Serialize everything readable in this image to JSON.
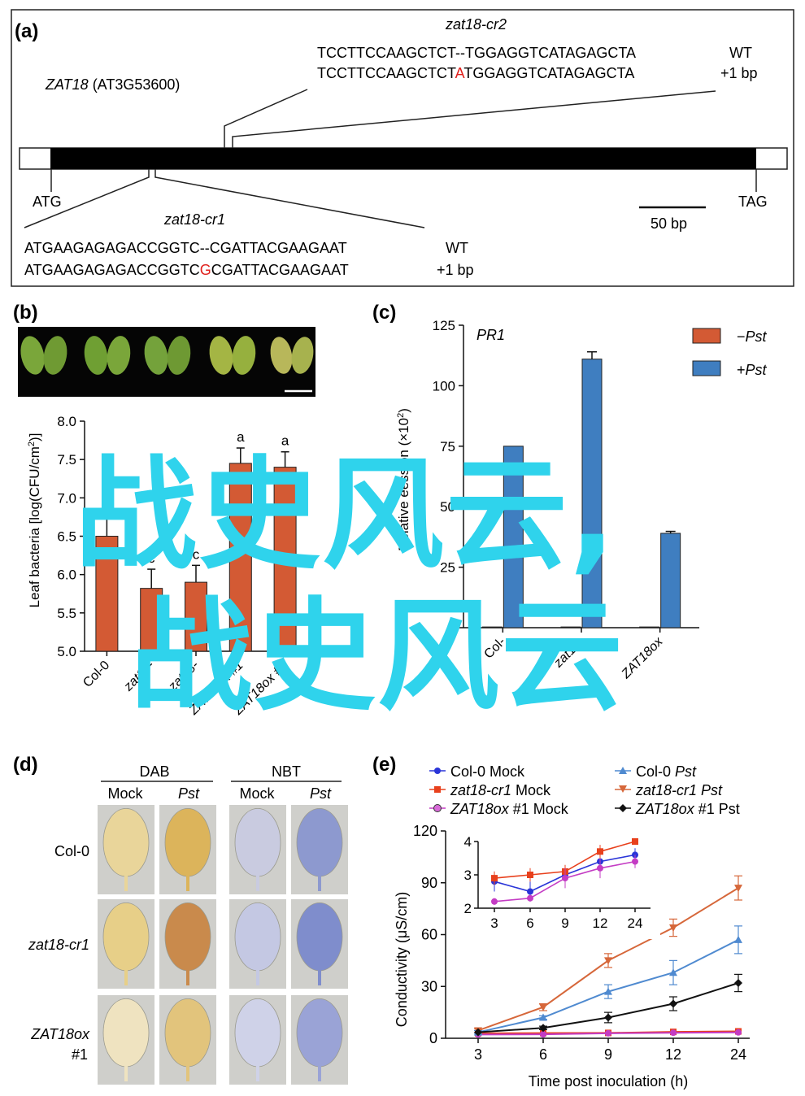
{
  "colors": {
    "orange": "#d35a34",
    "blue": "#3f7ec0",
    "red_base": "#e0201c",
    "watermark": "#2fd3ec",
    "col0_mock": "#2a35d8",
    "cr1_mock": "#e8401c",
    "ox_mock": "#c43cc4",
    "col0_pst": "#4f8ad0",
    "cr1_pst": "#d6673a",
    "ox_pst": "#111111"
  },
  "watermark": {
    "line1": "战史风云,",
    "line2": "战史风云"
  },
  "panel_a": {
    "label": "a",
    "gene": "ZAT18",
    "gene_locus": " (AT3G53600)",
    "cr2_title": "zat18-cr2",
    "cr2_wt_pre": "TCCTTCCAAGCTCT",
    "cr2_wt_post": "--TGGAGGTCATAGAGCTA",
    "cr2_mut_pre": "TCCTTCCAAGCTCT",
    "cr2_mut_ins": "A",
    "cr2_mut_post": "TGGAGGTCATAGAGCTA",
    "wt": "WT",
    "plus1": "+1 bp",
    "atg": "ATG",
    "tag": "TAG",
    "scale": "50 bp",
    "cr1_title": "zat18-cr1",
    "cr1_wt_pre": "ATGAAGAGAGACCGGTC",
    "cr1_wt_post": "--CGATTACGAAGAAT",
    "cr1_mut_pre": "ATGAAGAGAGACCGGTC",
    "cr1_mut_ins": "G",
    "cr1_mut_post": "CGATTACGAAGAAT"
  },
  "panel_b": {
    "label": "b",
    "ylabel": "Leaf bacteria [log(CFU/cm",
    "ylabel_sup": "2",
    "ylabel_end": ")]",
    "xlabels_visible": [
      "Col-0",
      "zat18-",
      "zat18-",
      "ZAT18ox #1",
      "ZAT18ox #2"
    ],
    "letters": [
      "",
      "c",
      "c",
      "a",
      "a"
    ],
    "chart_data": {
      "type": "bar",
      "categories": [
        "Col-0",
        "zat18-cr1",
        "zat18-cr2",
        "ZAT18ox #1",
        "ZAT18ox #2"
      ],
      "values": [
        6.5,
        5.82,
        5.9,
        7.45,
        7.4
      ],
      "errors": [
        0.25,
        0.25,
        0.22,
        0.2,
        0.2
      ],
      "yticks": [
        "5.0",
        "5.5",
        "6.0",
        "6.5",
        "7.0",
        "7.5",
        "8.0"
      ],
      "ylim": [
        5.0,
        8.0
      ]
    }
  },
  "panel_c": {
    "label": "c",
    "gene_title": "PR1",
    "ylabel_visible": "Relative e",
    "ylabel_mid": "ession (×10",
    "ylabel_sup": "2",
    "ylabel_end": ")",
    "legend": [
      {
        "sign": "−",
        "name": "Pst"
      },
      {
        "sign": "+",
        "name": "Pst"
      }
    ],
    "xlabels_visible": [
      "Col-",
      "zat18-",
      "ZAT18ox"
    ],
    "chart_data": {
      "type": "bar",
      "categories": [
        "Col-0",
        "zat18-cr1",
        "ZAT18ox #1"
      ],
      "series": [
        {
          "name": "−Pst",
          "values": [
            0.3,
            0.3,
            0.3
          ]
        },
        {
          "name": "+Pst",
          "values": [
            75,
            111,
            39
          ]
        }
      ],
      "errors_plus": [
        0,
        3,
        0.8
      ],
      "yticks": [
        "0",
        "25",
        "50",
        "75",
        "100",
        "125"
      ],
      "ylim": [
        0,
        125
      ]
    }
  },
  "panel_d": {
    "label": "d",
    "groups": [
      "DAB",
      "NBT"
    ],
    "subheaders": [
      {
        "text": "Mock",
        "italic": false
      },
      {
        "text": "Pst",
        "italic": true
      },
      {
        "text": "Mock",
        "italic": false
      },
      {
        "text": "Pst",
        "italic": true
      }
    ],
    "rows": [
      {
        "line1": "Col-0",
        "line2": "",
        "italic": false
      },
      {
        "line1": "zat18-cr1",
        "line2": "",
        "italic": true
      },
      {
        "line1": "ZAT18ox",
        "line2": "#1",
        "italic": true
      }
    ]
  },
  "panel_e": {
    "label": "e",
    "legend": [
      {
        "name": "Col-0",
        "suffix": " Mock",
        "italic": false
      },
      {
        "name": "Col-0 ",
        "suffix": "Pst",
        "italic": false
      },
      {
        "name": "zat18-cr1",
        "suffix": " Mock",
        "italic": true
      },
      {
        "name": "zat18-cr1 ",
        "suffix": "Pst",
        "italic": true
      },
      {
        "name": "ZAT18ox",
        "suffix": " #1 Mock",
        "italic": true
      },
      {
        "name": "ZAT18ox",
        "suffix": " #1 Pst",
        "italic": true
      }
    ],
    "xlabel": "Time post inoculation (h)",
    "ylabel": "Conductivity (μS/cm)",
    "chart_data": {
      "type": "line",
      "x": [
        "3",
        "6",
        "9",
        "12",
        "24"
      ],
      "yticks": [
        "0",
        "30",
        "60",
        "90",
        "120"
      ],
      "ylim": [
        0,
        120
      ],
      "series": [
        {
          "name": "Col-0 Mock",
          "values": [
            2.8,
            2.5,
            3.0,
            3.4,
            3.6
          ],
          "err": [
            0.3,
            0.3,
            0.2,
            0.2,
            0.2
          ]
        },
        {
          "name": "zat18-cr1 Mock",
          "values": [
            2.9,
            3.0,
            3.1,
            3.7,
            4.0
          ],
          "err": [
            0.2,
            0.2,
            0.2,
            0.2,
            0.1
          ]
        },
        {
          "name": "ZAT18ox #1 Mock",
          "values": [
            2.2,
            2.3,
            2.9,
            3.2,
            3.4
          ],
          "err": [
            0.1,
            0.1,
            0.3,
            0.3,
            0.2
          ]
        },
        {
          "name": "Col-0 Pst",
          "values": [
            3.5,
            12,
            27,
            38,
            57
          ],
          "err": [
            1,
            1,
            4,
            7,
            8
          ]
        },
        {
          "name": "zat18-cr1 Pst",
          "values": [
            4.5,
            18,
            45,
            64,
            87
          ],
          "err": [
            1,
            2,
            4,
            5,
            7
          ]
        },
        {
          "name": "ZAT18ox #1 Pst",
          "values": [
            3.5,
            6,
            12,
            20,
            32
          ],
          "err": [
            0.5,
            1,
            3,
            4,
            5
          ]
        }
      ],
      "inset": {
        "yticks": [
          "2",
          "3",
          "4"
        ],
        "ylim": [
          2,
          4
        ],
        "x": [
          "3",
          "6",
          "9",
          "12",
          "24"
        ]
      }
    }
  }
}
